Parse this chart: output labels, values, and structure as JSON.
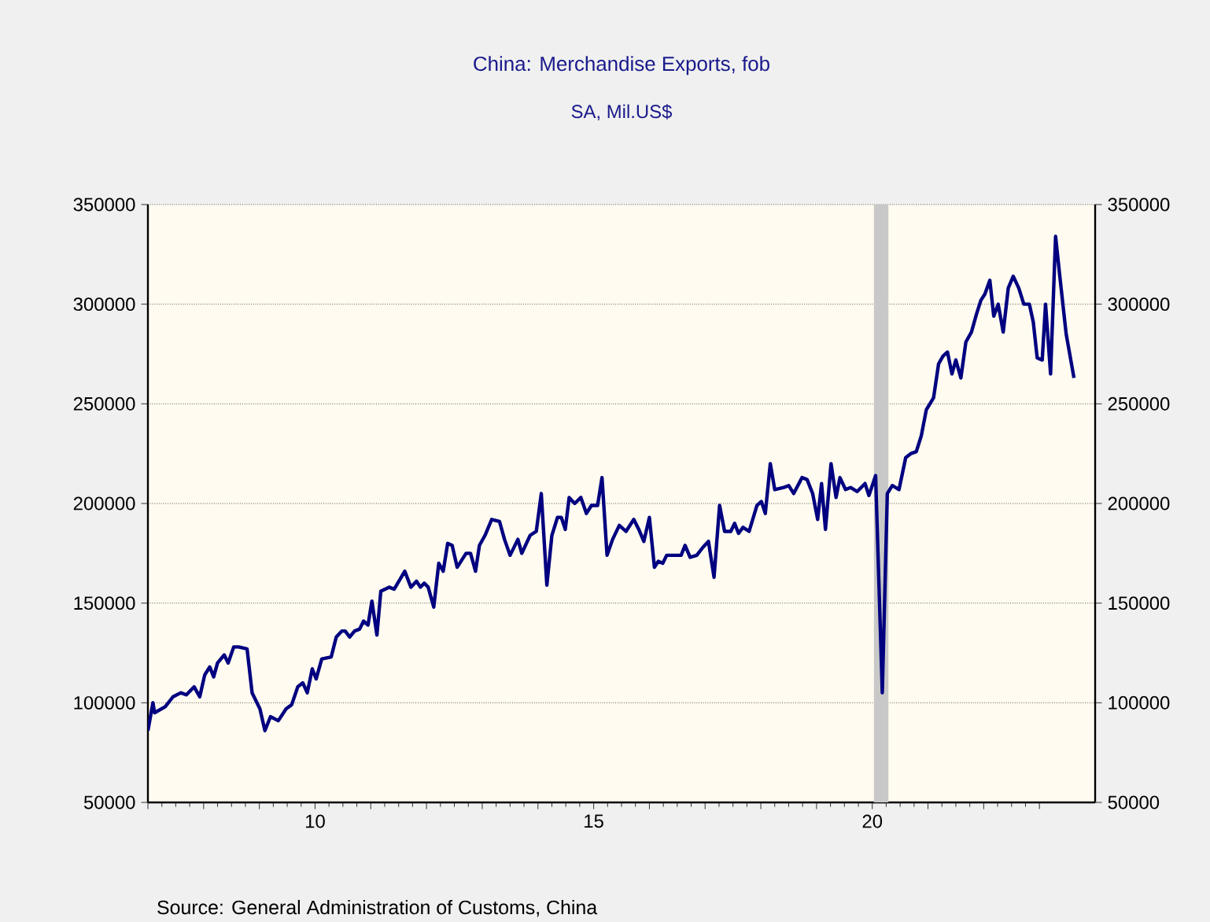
{
  "chart_data": {
    "type": "line",
    "title": "China: Merchandise Exports, fob",
    "subtitle": "SA, Mil.US$",
    "annotations": [
      "Source:  General Administration of Customs, China"
    ],
    "x": [
      7.0,
      7.09,
      7.12,
      7.31,
      7.45,
      7.59,
      7.69,
      7.83,
      7.93,
      8.02,
      8.11,
      8.18,
      8.25,
      8.37,
      8.44,
      8.54,
      8.63,
      8.78,
      8.87,
      9.01,
      9.1,
      9.2,
      9.34,
      9.48,
      9.58,
      9.69,
      9.78,
      9.86,
      9.95,
      10.02,
      10.12,
      10.29,
      10.38,
      10.48,
      10.54,
      10.62,
      10.71,
      10.8,
      10.87,
      10.95,
      11.02,
      11.11,
      11.18,
      11.33,
      11.42,
      11.61,
      11.72,
      11.82,
      11.89,
      11.96,
      12.03,
      12.13,
      12.22,
      12.3,
      12.38,
      12.46,
      12.55,
      12.71,
      12.79,
      12.88,
      12.95,
      13.05,
      13.17,
      13.31,
      13.4,
      13.5,
      13.64,
      13.71,
      13.86,
      13.97,
      14.06,
      14.16,
      14.25,
      14.35,
      14.42,
      14.49,
      14.56,
      14.66,
      14.77,
      14.87,
      14.96,
      15.07,
      15.15,
      15.24,
      15.34,
      15.46,
      15.58,
      15.72,
      15.81,
      15.9,
      16.0,
      16.09,
      16.16,
      16.24,
      16.31,
      16.47,
      16.57,
      16.64,
      16.73,
      16.85,
      16.96,
      17.06,
      17.16,
      17.26,
      17.35,
      17.46,
      17.53,
      17.6,
      17.68,
      17.79,
      17.93,
      18.01,
      18.08,
      18.17,
      18.25,
      18.41,
      18.5,
      18.59,
      18.74,
      18.83,
      18.93,
      19.02,
      19.09,
      19.16,
      19.26,
      19.35,
      19.42,
      19.52,
      19.61,
      19.73,
      19.87,
      19.94,
      20.06,
      20.18,
      20.27,
      20.36,
      20.48,
      20.6,
      20.69,
      20.79,
      20.88,
      20.97,
      21.1,
      21.19,
      21.27,
      21.35,
      21.43,
      21.5,
      21.59,
      21.68,
      21.78,
      21.87,
      21.95,
      22.02,
      22.11,
      22.18,
      22.26,
      22.35,
      22.44,
      22.53,
      22.63,
      22.72,
      22.82,
      22.89,
      22.96,
      23.05,
      23.11,
      23.2,
      23.29,
      23.37,
      23.48,
      23.62
    ],
    "series": [
      {
        "color": "#000080",
        "values": [
          86000,
          100000,
          95000,
          98000,
          103000,
          105000,
          104000,
          108000,
          103000,
          114000,
          118000,
          113000,
          120000,
          124000,
          120000,
          128000,
          128000,
          127000,
          105000,
          97000,
          86000,
          93000,
          91000,
          97000,
          99000,
          108000,
          110000,
          105000,
          117000,
          112000,
          122000,
          123000,
          133000,
          136000,
          136000,
          133000,
          136000,
          137000,
          141000,
          139000,
          151000,
          134000,
          156000,
          158000,
          157000,
          166000,
          158000,
          161000,
          158000,
          160000,
          158000,
          148000,
          170000,
          166000,
          180000,
          179000,
          168000,
          175000,
          175000,
          166000,
          179000,
          184000,
          192000,
          191000,
          182000,
          174000,
          182000,
          175000,
          184000,
          186000,
          205000,
          159000,
          184000,
          193000,
          193000,
          187000,
          203000,
          200000,
          203000,
          195000,
          199000,
          199000,
          213000,
          174000,
          182000,
          189000,
          186000,
          192000,
          187000,
          181000,
          193000,
          168000,
          171000,
          170000,
          174000,
          174000,
          174000,
          179000,
          173000,
          174000,
          178000,
          181000,
          163000,
          199000,
          186000,
          186000,
          190000,
          185000,
          188000,
          186000,
          199000,
          201000,
          195000,
          220000,
          207000,
          208000,
          209000,
          205000,
          213000,
          212000,
          205000,
          192000,
          210000,
          187000,
          220000,
          203000,
          213000,
          207000,
          208000,
          206000,
          210000,
          204000,
          214000,
          105000,
          205000,
          209000,
          207000,
          223000,
          225000,
          226000,
          234000,
          247000,
          253000,
          270000,
          274000,
          276000,
          265000,
          272000,
          263000,
          281000,
          286000,
          295000,
          302000,
          305000,
          312000,
          294000,
          300000,
          286000,
          308000,
          314000,
          308000,
          300000,
          300000,
          291000,
          273000,
          272000,
          300000,
          265000,
          334000,
          313000,
          285000,
          263000
        ]
      }
    ],
    "xlim": [
      7,
      24
    ],
    "xticks": [
      {
        "value": 7,
        "label": null
      },
      {
        "value": 8,
        "label": null
      },
      {
        "value": 9,
        "label": null
      },
      10,
      {
        "value": 11,
        "label": null
      },
      {
        "value": 12,
        "label": null
      },
      {
        "value": 13,
        "label": null
      },
      {
        "value": 14,
        "label": null
      },
      15,
      {
        "value": 16,
        "label": null
      },
      {
        "value": 17,
        "label": null
      },
      {
        "value": 18,
        "label": null
      },
      {
        "value": 19,
        "label": null
      },
      20,
      {
        "value": 21,
        "label": null
      },
      {
        "value": 22,
        "label": null
      },
      {
        "value": 23,
        "label": null
      }
    ],
    "ylim": [
      50000,
      350000
    ],
    "yticks": [
      50000,
      100000,
      150000,
      200000,
      250000,
      300000,
      350000
    ],
    "y2lim": [
      50000,
      350000
    ],
    "y2ticks": [
      50000,
      100000,
      150000,
      200000,
      250000,
      300000,
      350000
    ],
    "bands": [
      {
        "axis": "x",
        "from": 20.03,
        "to": 20.29,
        "color": "#c8c8c8"
      }
    ],
    "grid": "y",
    "marker": "none",
    "line_style": "solid"
  }
}
